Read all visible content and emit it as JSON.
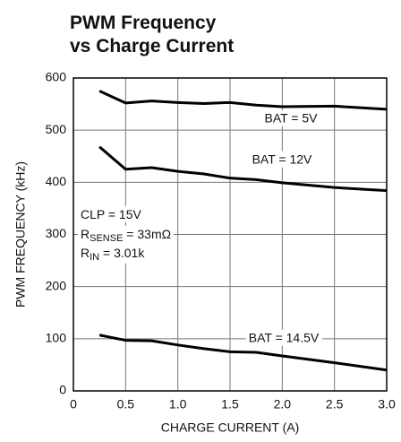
{
  "chart_data": {
    "type": "line",
    "title": [
      "PWM Frequency",
      "vs Charge Current"
    ],
    "x_label": "CHARGE CURRENT (A)",
    "y_label": "PWM FREQUENCY (kHz)",
    "x": [
      0.25,
      0.5,
      0.75,
      1.0,
      1.25,
      1.5,
      1.75,
      2.0,
      2.5,
      3.0
    ],
    "series": [
      {
        "name": "BAT = 5V",
        "color": "#000000",
        "values": [
          575,
          552,
          556,
          553,
          551,
          553,
          548,
          545,
          546,
          540
        ]
      },
      {
        "name": "BAT = 12V",
        "color": "#000000",
        "values": [
          468,
          425,
          428,
          421,
          416,
          408,
          405,
          399,
          390,
          384
        ]
      },
      {
        "name": "BAT = 14.5V",
        "color": "#000000",
        "values": [
          107,
          97,
          96,
          88,
          81,
          75,
          74,
          67,
          54,
          40
        ]
      }
    ],
    "annotation": [
      {
        "text": "CLP = 15V"
      },
      {
        "text": "R",
        "sub": "SENSE",
        "after": " = 33mΩ"
      },
      {
        "text": "R",
        "sub": "IN",
        "after": " = 3.01k"
      }
    ],
    "xlim": [
      0,
      3
    ],
    "xticks": [
      0,
      0.5,
      {
        "value": 1,
        "label": "1.0"
      },
      1.5,
      {
        "value": 2,
        "label": "2.0"
      },
      2.5,
      {
        "value": 3,
        "label": "3.0"
      }
    ],
    "ylim": [
      0,
      600
    ],
    "yticks": [
      0,
      100,
      200,
      300,
      400,
      500,
      600
    ],
    "grid": true
  }
}
